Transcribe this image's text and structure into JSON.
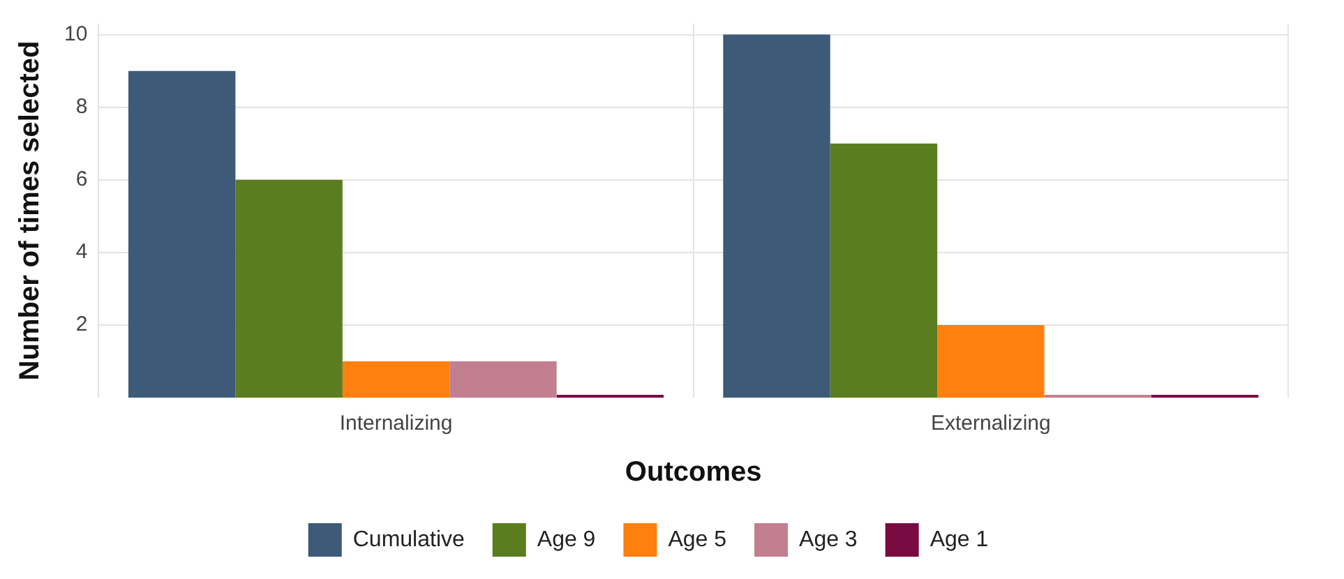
{
  "chart_data": {
    "type": "bar",
    "xlabel": "Outcomes",
    "ylabel": "Number of times selected",
    "categories": [
      "Internalizing",
      "Externalizing"
    ],
    "series": [
      {
        "name": "Cumulative",
        "color": "#3d5a78",
        "values": [
          9,
          10
        ]
      },
      {
        "name": "Age 9",
        "color": "#5a7d1f",
        "values": [
          6,
          7
        ]
      },
      {
        "name": "Age 5",
        "color": "#ff7f0f",
        "values": [
          1,
          2
        ]
      },
      {
        "name": "Age 3",
        "color": "#c27f8f",
        "values": [
          1,
          0
        ]
      },
      {
        "name": "Age 1",
        "color": "#7a0a42",
        "values": [
          0,
          0
        ]
      }
    ],
    "ylim": [
      0,
      10.3
    ],
    "yticks": [
      2,
      4,
      6,
      8,
      10
    ],
    "grid": true,
    "legend": "bottom"
  }
}
